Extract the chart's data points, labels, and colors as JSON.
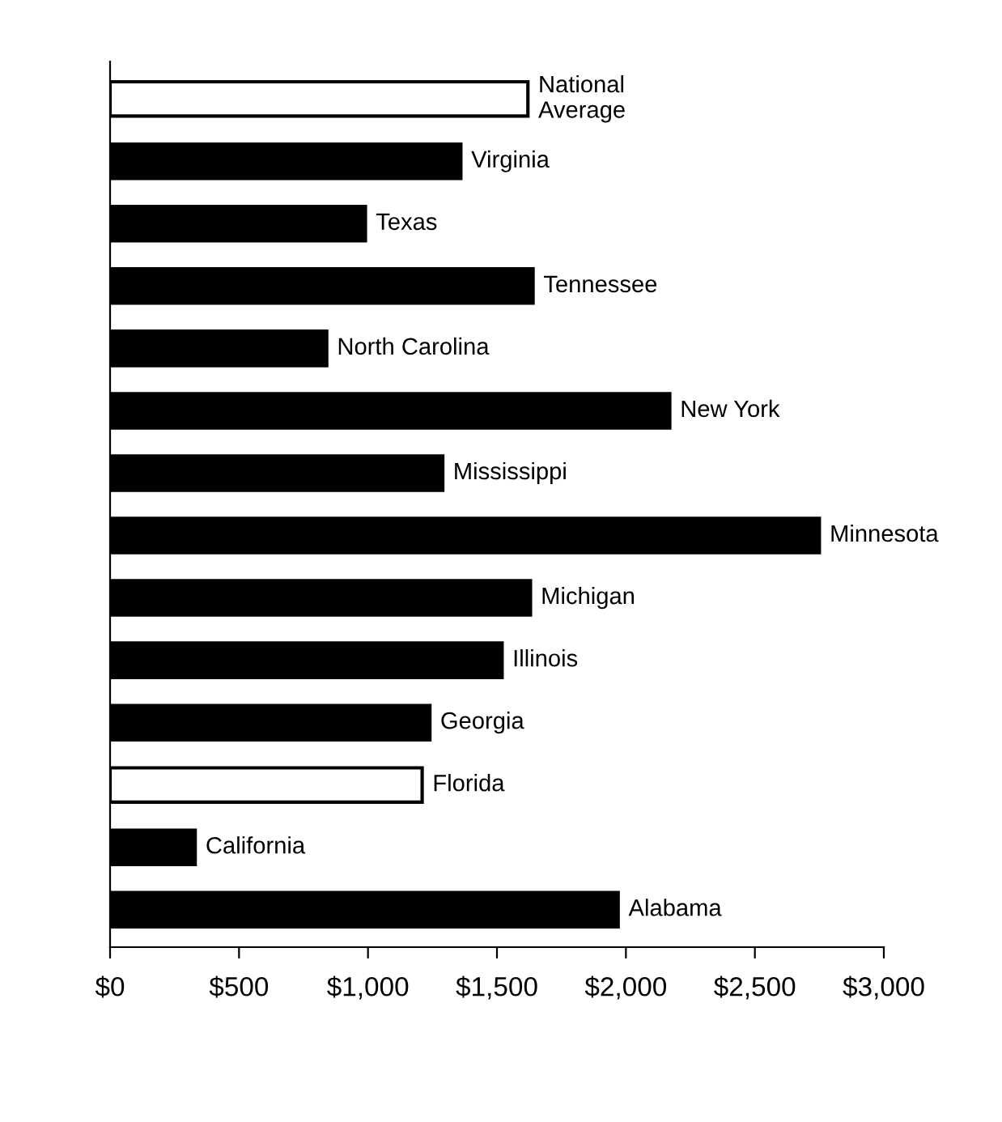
{
  "chart_data": {
    "type": "bar",
    "orientation": "horizontal",
    "categories": [
      "National\nAverage",
      "Virginia",
      "Texas",
      "Tennessee",
      "North Carolina",
      "New York",
      "Mississippi",
      "Minnesota",
      "Michigan",
      "Illinois",
      "Georgia",
      "Florida",
      "California",
      "Alabama"
    ],
    "values": [
      1620,
      1360,
      990,
      1640,
      840,
      2170,
      1290,
      2750,
      1630,
      1520,
      1240,
      1210,
      330,
      1970
    ],
    "colors": [
      "#ffffff",
      "#000000",
      "#000000",
      "#000000",
      "#000000",
      "#000000",
      "#000000",
      "#000000",
      "#000000",
      "#000000",
      "#000000",
      "#ffffff",
      "#000000",
      "#000000"
    ],
    "xlim": [
      0,
      3000
    ],
    "xticks": [
      {
        "value": 0,
        "label": "$0"
      },
      {
        "value": 500,
        "label": "$500"
      },
      {
        "value": 1000,
        "label": "$1,000"
      },
      {
        "value": 1500,
        "label": "$1,500"
      },
      {
        "value": 2000,
        "label": "$2,000"
      },
      {
        "value": 2500,
        "label": "$2,500"
      },
      {
        "value": 3000,
        "label": "$3,000"
      }
    ],
    "tick_labels": "x",
    "grid": false,
    "legend": false
  }
}
